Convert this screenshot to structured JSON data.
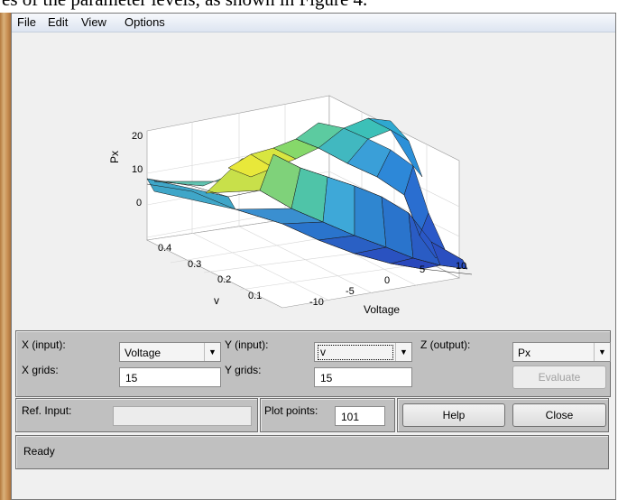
{
  "background_text": "es of the parameter levels, as shown in Figure 4.",
  "menu": [
    "File",
    "Edit",
    "View",
    "Options"
  ],
  "plot": {
    "zlabel": "Px",
    "xlabel": "Voltage",
    "ylabel": "v",
    "z_ticks": [
      "20",
      "10",
      "0"
    ],
    "y_ticks": [
      "0.4",
      "0.3",
      "0.2",
      "0.1"
    ],
    "x_ticks": [
      "-10",
      "-5",
      "0",
      "5",
      "10"
    ]
  },
  "controls": {
    "x_input_label": "X (input):",
    "x_input_value": "Voltage",
    "y_input_label": "Y (input):",
    "y_input_value": "v",
    "z_output_label": "Z (output):",
    "z_output_value": "Px",
    "x_grids_label": "X grids:",
    "x_grids_value": "15",
    "y_grids_label": "Y grids:",
    "y_grids_value": "15",
    "evaluate_label": "Evaluate"
  },
  "footer": {
    "ref_input_label": "Ref. Input:",
    "ref_input_value": "",
    "plot_points_label": "Plot points:",
    "plot_points_value": "101",
    "help_label": "Help",
    "close_label": "Close"
  },
  "status": "Ready",
  "icons": {
    "dropdown_arrow": "triangle-down-icon"
  }
}
